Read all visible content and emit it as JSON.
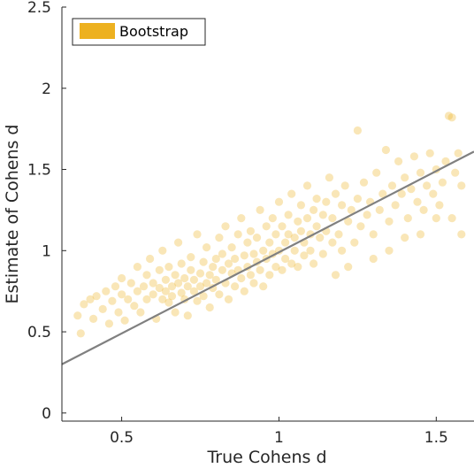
{
  "chart_data": {
    "type": "scatter",
    "xlabel": "True Cohens d",
    "ylabel": "Estimate of Cohens d",
    "xlim": [
      0.31,
      1.62
    ],
    "ylim": [
      -0.05,
      2.5
    ],
    "xticks": [
      0.5,
      1,
      1.5
    ],
    "xtick_labels": [
      "0.5",
      "1",
      "1.5"
    ],
    "yticks": [
      0,
      0.5,
      1,
      1.5,
      2,
      2.5
    ],
    "ytick_labels": [
      "0",
      "0.5",
      "1",
      "1.5",
      "2",
      "2.5"
    ],
    "grid": false,
    "legend_position": "top-left",
    "series": [
      {
        "name": "Bootstrap",
        "color": "#EDB120",
        "points_description_free": true,
        "points": [
          [
            0.36,
            0.6
          ],
          [
            0.38,
            0.67
          ],
          [
            0.37,
            0.49
          ],
          [
            0.4,
            0.7
          ],
          [
            0.41,
            0.58
          ],
          [
            0.42,
            0.72
          ],
          [
            0.44,
            0.64
          ],
          [
            0.45,
            0.75
          ],
          [
            0.46,
            0.55
          ],
          [
            0.47,
            0.69
          ],
          [
            0.48,
            0.78
          ],
          [
            0.49,
            0.62
          ],
          [
            0.5,
            0.73
          ],
          [
            0.5,
            0.83
          ],
          [
            0.51,
            0.57
          ],
          [
            0.52,
            0.7
          ],
          [
            0.53,
            0.8
          ],
          [
            0.54,
            0.66
          ],
          [
            0.55,
            0.75
          ],
          [
            0.55,
            0.9
          ],
          [
            0.56,
            0.62
          ],
          [
            0.57,
            0.78
          ],
          [
            0.58,
            0.85
          ],
          [
            0.58,
            0.7
          ],
          [
            0.59,
            0.95
          ],
          [
            0.6,
            0.73
          ],
          [
            0.6,
            0.8
          ],
          [
            0.61,
            0.58
          ],
          [
            0.62,
            0.77
          ],
          [
            0.62,
            0.88
          ],
          [
            0.63,
            0.7
          ],
          [
            0.63,
            1.0
          ],
          [
            0.64,
            0.82
          ],
          [
            0.64,
            0.75
          ],
          [
            0.65,
            0.68
          ],
          [
            0.65,
            0.9
          ],
          [
            0.66,
            0.78
          ],
          [
            0.66,
            0.72
          ],
          [
            0.67,
            0.85
          ],
          [
            0.67,
            0.62
          ],
          [
            0.68,
            0.8
          ],
          [
            0.68,
            1.05
          ],
          [
            0.69,
            0.74
          ],
          [
            0.69,
            0.92
          ],
          [
            0.7,
            0.7
          ],
          [
            0.7,
            0.83
          ],
          [
            0.71,
            0.78
          ],
          [
            0.71,
            0.6
          ],
          [
            0.72,
            0.88
          ],
          [
            0.72,
            0.96
          ],
          [
            0.73,
            0.75
          ],
          [
            0.73,
            0.82
          ],
          [
            0.74,
            1.1
          ],
          [
            0.74,
            0.69
          ],
          [
            0.75,
            0.86
          ],
          [
            0.75,
            0.78
          ],
          [
            0.76,
            0.93
          ],
          [
            0.76,
            0.72
          ],
          [
            0.77,
            0.8
          ],
          [
            0.77,
            1.02
          ],
          [
            0.78,
            0.85
          ],
          [
            0.78,
            0.65
          ],
          [
            0.79,
            0.9
          ],
          [
            0.79,
            0.77
          ],
          [
            0.8,
            0.95
          ],
          [
            0.8,
            0.82
          ],
          [
            0.81,
            1.08
          ],
          [
            0.81,
            0.73
          ],
          [
            0.82,
            0.88
          ],
          [
            0.82,
            0.98
          ],
          [
            0.83,
            0.8
          ],
          [
            0.83,
            1.15
          ],
          [
            0.84,
            0.92
          ],
          [
            0.84,
            0.7
          ],
          [
            0.85,
            0.86
          ],
          [
            0.85,
            1.02
          ],
          [
            0.86,
            0.95
          ],
          [
            0.86,
            0.78
          ],
          [
            0.87,
            1.1
          ],
          [
            0.87,
            0.88
          ],
          [
            0.88,
            0.83
          ],
          [
            0.88,
            1.2
          ],
          [
            0.89,
            0.97
          ],
          [
            0.89,
            0.75
          ],
          [
            0.9,
            1.05
          ],
          [
            0.9,
            0.9
          ],
          [
            0.91,
            0.85
          ],
          [
            0.91,
            1.12
          ],
          [
            0.92,
            0.98
          ],
          [
            0.92,
            0.8
          ],
          [
            0.93,
            1.08
          ],
          [
            0.93,
            0.93
          ],
          [
            0.94,
            1.25
          ],
          [
            0.94,
            0.88
          ],
          [
            0.95,
            1.0
          ],
          [
            0.95,
            0.78
          ],
          [
            0.96,
            1.15
          ],
          [
            0.96,
            0.95
          ],
          [
            0.97,
            1.05
          ],
          [
            0.97,
            0.85
          ],
          [
            0.98,
            1.2
          ],
          [
            0.98,
            0.98
          ],
          [
            0.99,
            1.1
          ],
          [
            0.99,
            0.9
          ],
          [
            1.0,
            1.3
          ],
          [
            1.0,
            1.0
          ],
          [
            1.01,
            0.88
          ],
          [
            1.01,
            1.15
          ],
          [
            1.02,
            1.05
          ],
          [
            1.02,
            0.95
          ],
          [
            1.03,
            1.22
          ],
          [
            1.03,
            1.1
          ],
          [
            1.04,
            0.92
          ],
          [
            1.04,
            1.35
          ],
          [
            1.05,
            1.08
          ],
          [
            1.05,
            1.0
          ],
          [
            1.06,
            1.18
          ],
          [
            1.06,
            0.9
          ],
          [
            1.07,
            1.12
          ],
          [
            1.07,
            1.28
          ],
          [
            1.08,
            1.05
          ],
          [
            1.08,
            0.97
          ],
          [
            1.09,
            1.2
          ],
          [
            1.09,
            1.4
          ],
          [
            1.1,
            1.1
          ],
          [
            1.1,
            1.0
          ],
          [
            1.11,
            1.25
          ],
          [
            1.11,
            0.92
          ],
          [
            1.12,
            1.15
          ],
          [
            1.12,
            1.32
          ],
          [
            1.13,
            1.08
          ],
          [
            1.14,
            1.22
          ],
          [
            1.14,
            0.98
          ],
          [
            1.15,
            1.3
          ],
          [
            1.15,
            1.12
          ],
          [
            1.16,
            1.45
          ],
          [
            1.17,
            1.05
          ],
          [
            1.17,
            1.2
          ],
          [
            1.18,
            1.35
          ],
          [
            1.19,
            1.1
          ],
          [
            1.2,
            1.28
          ],
          [
            1.2,
            1.0
          ],
          [
            1.21,
            1.4
          ],
          [
            1.22,
            1.18
          ],
          [
            1.23,
            1.25
          ],
          [
            1.24,
            1.05
          ],
          [
            1.25,
            1.32
          ],
          [
            1.25,
            1.74
          ],
          [
            1.26,
            1.15
          ],
          [
            1.27,
            1.42
          ],
          [
            1.28,
            1.22
          ],
          [
            1.29,
            1.3
          ],
          [
            1.3,
            1.1
          ],
          [
            1.31,
            1.48
          ],
          [
            1.32,
            1.25
          ],
          [
            1.33,
            1.35
          ],
          [
            1.34,
            1.62
          ],
          [
            1.35,
            1.18
          ],
          [
            1.36,
            1.4
          ],
          [
            1.37,
            1.28
          ],
          [
            1.38,
            1.55
          ],
          [
            1.39,
            1.35
          ],
          [
            1.4,
            1.45
          ],
          [
            1.41,
            1.2
          ],
          [
            1.42,
            1.38
          ],
          [
            1.43,
            1.58
          ],
          [
            1.44,
            1.3
          ],
          [
            1.45,
            1.48
          ],
          [
            1.46,
            1.25
          ],
          [
            1.47,
            1.4
          ],
          [
            1.48,
            1.6
          ],
          [
            1.49,
            1.35
          ],
          [
            1.5,
            1.5
          ],
          [
            1.51,
            1.28
          ],
          [
            1.52,
            1.42
          ],
          [
            1.53,
            1.55
          ],
          [
            1.54,
            1.83
          ],
          [
            1.55,
            1.2
          ],
          [
            1.56,
            1.48
          ],
          [
            1.57,
            1.6
          ],
          [
            1.58,
            1.4
          ],
          [
            1.58,
            1.1
          ],
          [
            1.55,
            1.82
          ],
          [
            1.5,
            1.2
          ],
          [
            1.45,
            1.1
          ],
          [
            1.4,
            1.08
          ],
          [
            1.35,
            1.0
          ],
          [
            1.3,
            0.95
          ],
          [
            1.22,
            0.9
          ],
          [
            1.18,
            0.85
          ]
        ]
      }
    ],
    "reference_line": {
      "from": [
        0.31,
        0.3
      ],
      "to": [
        1.62,
        1.61
      ],
      "color": "#808080"
    }
  }
}
